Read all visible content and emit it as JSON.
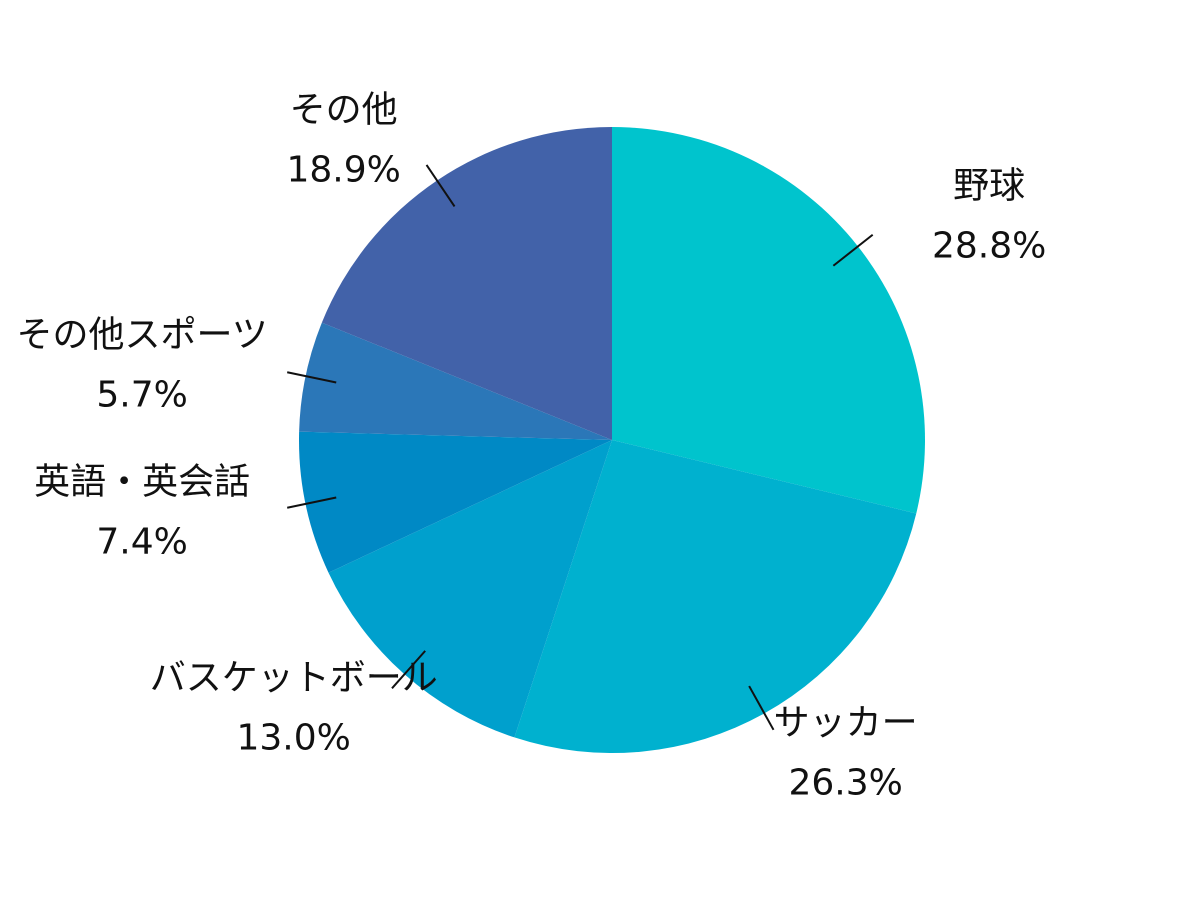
{
  "chart_data": {
    "type": "pie",
    "categories": [
      "野球",
      "サッカー",
      "バスケットボール",
      "英語・英会話",
      "その他スポーツ",
      "その他"
    ],
    "values": [
      28.8,
      26.3,
      13.0,
      7.4,
      5.7,
      18.9
    ],
    "value_labels": [
      "28.8%",
      "26.3%",
      "13.0%",
      "7.4%",
      "5.7%",
      "18.9%"
    ],
    "colors": [
      "#00c4cd",
      "#00b1cf",
      "#00a0cd",
      "#0089c5",
      "#2b77b8",
      "#4262a9"
    ]
  }
}
